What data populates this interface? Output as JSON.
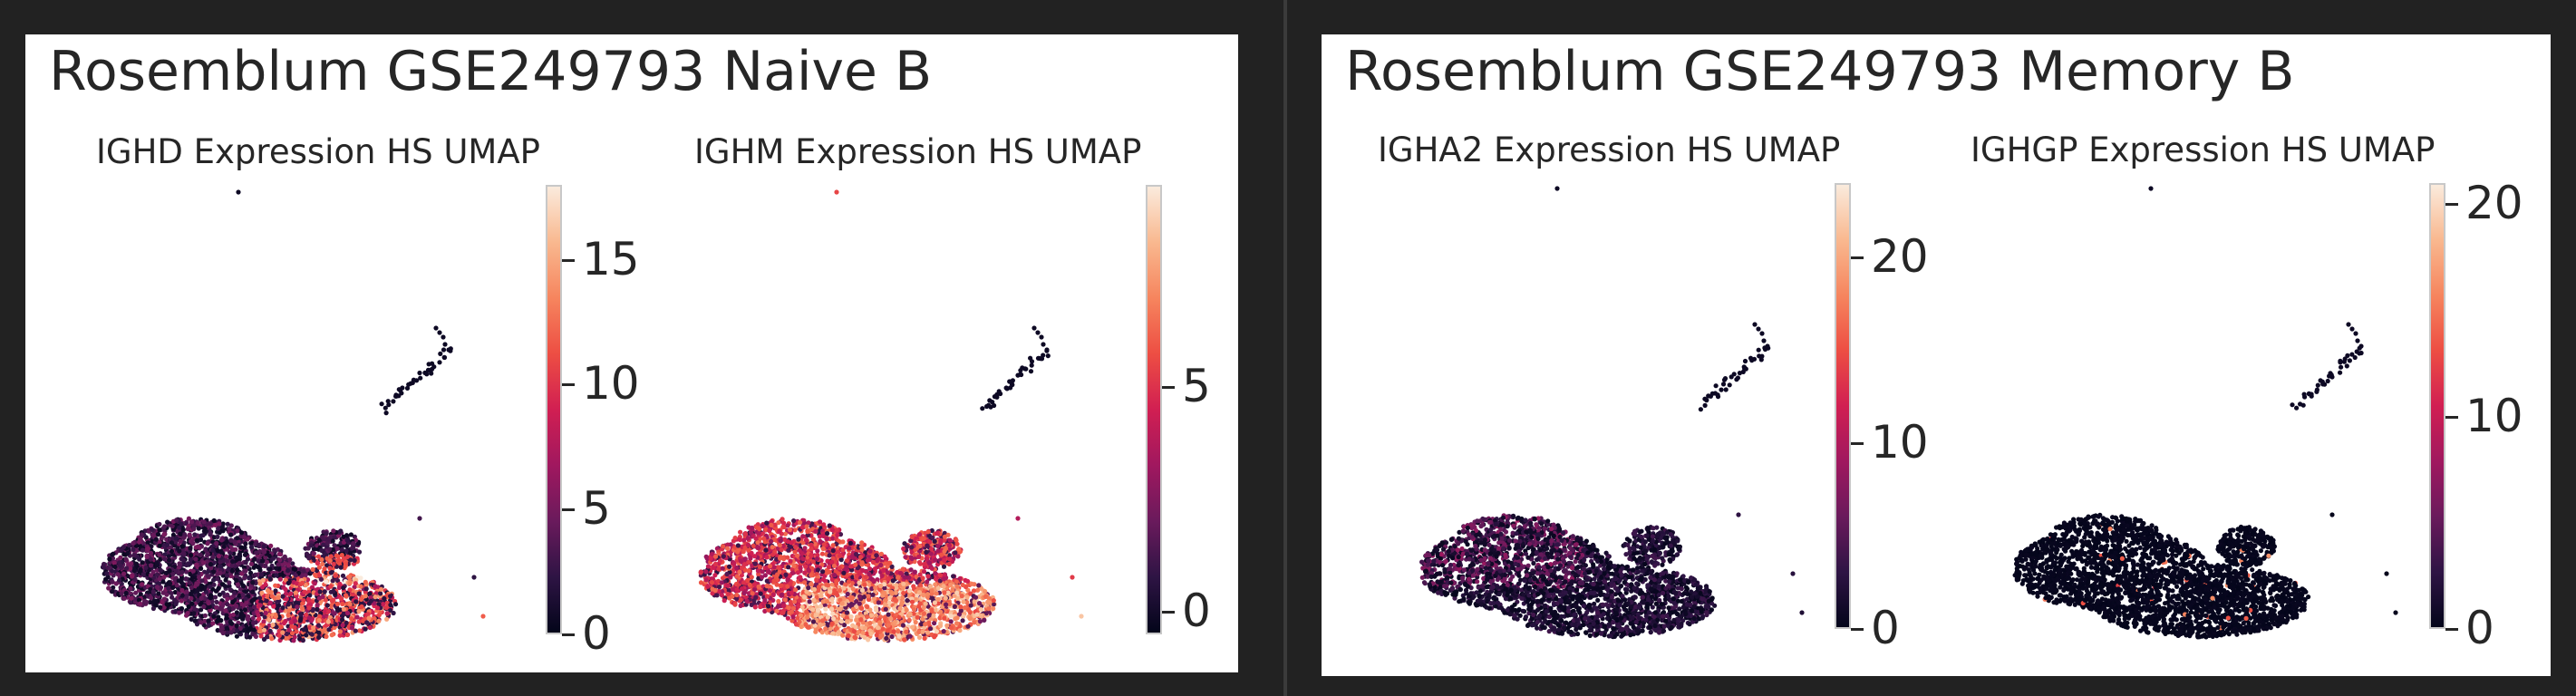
{
  "colors": {
    "background": "#222222",
    "panel_bg": "#ffffff",
    "colormap": [
      "#03051a",
      "#2e1444",
      "#6a1a5c",
      "#a0185f",
      "#d11f52",
      "#ed4e43",
      "#f6855e",
      "#f9b88f",
      "#faebdd"
    ]
  },
  "panels": [
    {
      "title": "Rosemblum GSE249793 Naive B"
    },
    {
      "title": "Rosemblum GSE249793 Memory B"
    }
  ],
  "chart_data": [
    {
      "type": "scatter",
      "subtype": "umap_feature_plot",
      "title": "IGHD Expression HS UMAP",
      "xlabel": "",
      "ylabel": "",
      "colorbar": {
        "min": 0,
        "max": 18,
        "ticks": [
          0,
          5,
          10,
          15
        ],
        "cmap": "rocket"
      },
      "grid": false,
      "expression_pattern": "high in lower-right lobe of main cluster, mixed low-moderate elsewhere"
    },
    {
      "type": "scatter",
      "subtype": "umap_feature_plot",
      "title": "IGHM Expression HS UMAP",
      "xlabel": "",
      "ylabel": "",
      "colorbar": {
        "min": -0.5,
        "max": 9.5,
        "ticks": [
          0,
          5
        ],
        "cmap": "rocket"
      },
      "grid": false,
      "expression_pattern": "broadly moderate-high across main cluster"
    },
    {
      "type": "scatter",
      "subtype": "umap_feature_plot",
      "title": "IGHA2 Expression HS UMAP",
      "xlabel": "",
      "ylabel": "",
      "colorbar": {
        "min": 0,
        "max": 24,
        "ticks": [
          0,
          10,
          20
        ],
        "cmap": "rocket"
      },
      "grid": false,
      "expression_pattern": "moderate in upper-left of main cluster, low elsewhere"
    },
    {
      "type": "scatter",
      "subtype": "umap_feature_plot",
      "title": "IGHGP Expression HS UMAP",
      "xlabel": "",
      "ylabel": "",
      "colorbar": {
        "min": 0,
        "max": 21,
        "ticks": [
          0,
          10,
          20
        ],
        "cmap": "rocket"
      },
      "grid": false,
      "expression_pattern": "near zero across cells with a few scattered high points"
    }
  ]
}
